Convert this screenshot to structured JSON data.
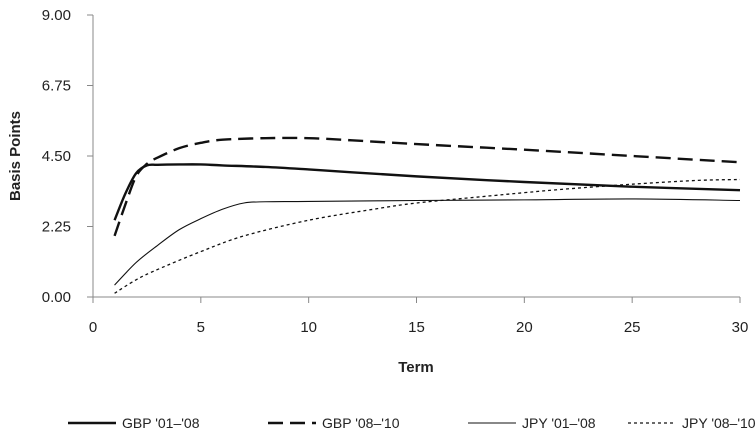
{
  "chart_data": {
    "type": "line",
    "title": "",
    "xlabel": "Term",
    "ylabel": "Basis Points",
    "xlim": [
      0,
      30
    ],
    "ylim": [
      0,
      9
    ],
    "x_ticks": [
      0,
      5,
      10,
      15,
      20,
      25,
      30
    ],
    "x_tick_labels": [
      "0",
      "5",
      "10",
      "15",
      "20",
      "25",
      "30"
    ],
    "y_ticks": [
      0,
      2.25,
      4.5,
      6.75,
      9
    ],
    "y_tick_labels": [
      "0.00",
      "2.25",
      "4.50",
      "6.75",
      "9.00"
    ],
    "grid": false,
    "legend_position": "bottom",
    "series": [
      {
        "name": "GBP '01–'08",
        "color": "#111111",
        "style": "solid-thick",
        "points": [
          [
            1,
            2.45
          ],
          [
            1.5,
            3.3
          ],
          [
            2,
            3.95
          ],
          [
            2.5,
            4.2
          ],
          [
            3,
            4.22
          ],
          [
            4,
            4.23
          ],
          [
            5,
            4.23
          ],
          [
            6,
            4.2
          ],
          [
            8,
            4.15
          ],
          [
            10,
            4.07
          ],
          [
            12,
            3.98
          ],
          [
            15,
            3.85
          ],
          [
            20,
            3.67
          ],
          [
            25,
            3.52
          ],
          [
            30,
            3.41
          ]
        ]
      },
      {
        "name": "GBP '08–'10",
        "color": "#111111",
        "style": "dashed-thick",
        "points": [
          [
            1,
            1.95
          ],
          [
            1.5,
            2.95
          ],
          [
            2,
            3.85
          ],
          [
            2.5,
            4.25
          ],
          [
            3,
            4.45
          ],
          [
            4,
            4.75
          ],
          [
            5,
            4.92
          ],
          [
            6,
            5.02
          ],
          [
            8,
            5.07
          ],
          [
            10,
            5.07
          ],
          [
            12,
            5.0
          ],
          [
            15,
            4.88
          ],
          [
            20,
            4.7
          ],
          [
            25,
            4.5
          ],
          [
            30,
            4.3
          ]
        ]
      },
      {
        "name": "JPY '01–'08",
        "color": "#111111",
        "style": "solid-thin",
        "points": [
          [
            1,
            0.38
          ],
          [
            2,
            1.1
          ],
          [
            3,
            1.65
          ],
          [
            4,
            2.15
          ],
          [
            5,
            2.5
          ],
          [
            6,
            2.8
          ],
          [
            7,
            3.0
          ],
          [
            8,
            3.04
          ],
          [
            10,
            3.05
          ],
          [
            15,
            3.08
          ],
          [
            20,
            3.1
          ],
          [
            25,
            3.13
          ],
          [
            30,
            3.08
          ]
        ]
      },
      {
        "name": "JPY '08–'10",
        "color": "#111111",
        "style": "dotted",
        "points": [
          [
            1,
            0.12
          ],
          [
            2,
            0.55
          ],
          [
            3,
            0.88
          ],
          [
            5,
            1.45
          ],
          [
            7,
            1.95
          ],
          [
            10,
            2.45
          ],
          [
            13,
            2.8
          ],
          [
            15,
            3.0
          ],
          [
            18,
            3.2
          ],
          [
            20,
            3.33
          ],
          [
            22,
            3.45
          ],
          [
            25,
            3.6
          ],
          [
            28,
            3.72
          ],
          [
            30,
            3.75
          ]
        ]
      }
    ]
  }
}
